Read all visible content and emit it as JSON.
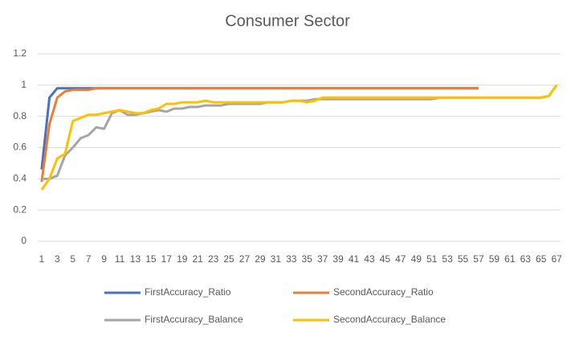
{
  "chart_data": {
    "type": "line",
    "title": "Consumer Sector",
    "categories": [
      "1",
      null,
      "3",
      null,
      "5",
      null,
      "7",
      null,
      "9",
      null,
      "11",
      null,
      "13",
      null,
      "15",
      null,
      "17",
      null,
      "19",
      null,
      "21",
      null,
      "23",
      null,
      "25",
      null,
      "27",
      null,
      "29",
      null,
      "31",
      null,
      "33",
      null,
      "35",
      null,
      "37",
      null,
      "39",
      null,
      "41",
      null,
      "43",
      null,
      "45",
      null,
      "47",
      null,
      "49",
      null,
      "51",
      null,
      "53",
      null,
      "55",
      null,
      "57",
      null,
      "59",
      null,
      "61",
      null,
      "63",
      null,
      "65",
      null,
      "67"
    ],
    "series": [
      {
        "name": "FirstAccuracy_Ratio",
        "color": "#4472c4",
        "values": [
          0.46,
          0.92,
          0.98,
          0.98,
          0.98,
          0.98,
          0.98,
          0.98,
          0.98,
          0.98,
          0.98,
          0.98,
          0.98,
          0.98,
          0.98,
          0.98,
          0.98,
          0.98,
          0.98,
          0.98,
          0.98,
          0.98,
          0.98,
          0.98,
          0.98,
          0.98,
          0.98,
          0.98,
          0.98,
          0.98,
          0.98,
          0.98,
          0.98,
          0.98,
          0.98,
          0.98,
          0.98,
          0.98,
          0.98,
          0.98,
          0.98,
          0.98,
          0.98,
          0.98,
          0.98,
          0.98,
          0.98,
          0.98,
          0.98,
          0.98,
          0.98,
          0.98,
          0.98,
          0.98,
          0.98,
          0.98,
          0.98,
          null,
          null,
          null,
          null,
          null,
          null,
          null,
          null,
          null,
          null
        ]
      },
      {
        "name": "SecondAccuracy_Ratio",
        "color": "#ed7d31",
        "values": [
          0.38,
          0.75,
          0.92,
          0.96,
          0.97,
          0.97,
          0.97,
          0.98,
          0.98,
          0.98,
          0.98,
          0.98,
          0.98,
          0.98,
          0.98,
          0.98,
          0.98,
          0.98,
          0.98,
          0.98,
          0.98,
          0.98,
          0.98,
          0.98,
          0.98,
          0.98,
          0.98,
          0.98,
          0.98,
          0.98,
          0.98,
          0.98,
          0.98,
          0.98,
          0.98,
          0.98,
          0.98,
          0.98,
          0.98,
          0.98,
          0.98,
          0.98,
          0.98,
          0.98,
          0.98,
          0.98,
          0.98,
          0.98,
          0.98,
          0.98,
          0.98,
          0.98,
          0.98,
          0.98,
          0.98,
          0.98,
          0.98,
          null,
          null,
          null,
          null,
          null,
          null,
          null,
          null,
          null,
          null
        ]
      },
      {
        "name": "FirstAccuracy_Balance",
        "color": "#a5a5a5",
        "values": [
          0.4,
          0.4,
          0.42,
          0.55,
          0.6,
          0.66,
          0.68,
          0.73,
          0.72,
          0.82,
          0.84,
          0.81,
          0.81,
          0.82,
          0.83,
          0.84,
          0.83,
          0.85,
          0.85,
          0.86,
          0.86,
          0.87,
          0.87,
          0.87,
          0.88,
          0.88,
          0.88,
          0.88,
          0.88,
          0.89,
          0.89,
          0.89,
          0.9,
          0.9,
          0.9,
          0.91,
          0.91,
          0.91,
          0.91,
          0.91,
          0.91,
          0.91,
          0.91,
          0.91,
          0.91,
          0.91,
          0.91,
          0.91,
          0.91,
          0.91,
          0.91,
          0.92,
          0.92,
          0.92,
          0.92,
          0.92,
          0.92,
          0.92,
          0.92,
          0.92,
          0.92,
          0.92,
          0.92,
          0.92,
          0.92,
          0.93,
          1.0
        ]
      },
      {
        "name": "SecondAccuracy_Balance",
        "color": "#ffc000",
        "values": [
          0.33,
          0.4,
          0.53,
          0.56,
          0.77,
          0.79,
          0.81,
          0.81,
          0.82,
          0.83,
          0.84,
          0.83,
          0.82,
          0.82,
          0.84,
          0.85,
          0.88,
          0.88,
          0.89,
          0.89,
          0.89,
          0.9,
          0.89,
          0.89,
          0.89,
          0.89,
          0.89,
          0.89,
          0.89,
          0.89,
          0.89,
          0.89,
          0.9,
          0.9,
          0.89,
          0.9,
          0.92,
          0.92,
          0.92,
          0.92,
          0.92,
          0.92,
          0.92,
          0.92,
          0.92,
          0.92,
          0.92,
          0.92,
          0.92,
          0.92,
          0.92,
          0.92,
          0.92,
          0.92,
          0.92,
          0.92,
          0.92,
          0.92,
          0.92,
          0.92,
          0.92,
          0.92,
          0.92,
          0.92,
          0.92,
          0.93,
          1.0
        ]
      }
    ],
    "ylim": [
      0,
      1.2
    ],
    "yticks": [
      0,
      0.2,
      0.4,
      0.6,
      0.8,
      1,
      1.2
    ],
    "grid": true,
    "legend": "bottom"
  }
}
